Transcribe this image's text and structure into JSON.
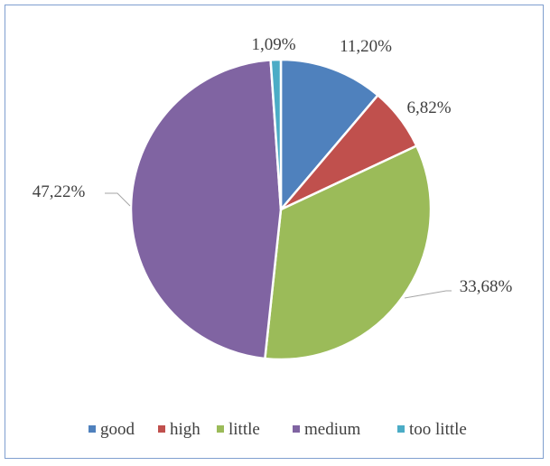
{
  "chart_data": {
    "type": "pie",
    "title": "",
    "start_angle_deg": 0,
    "direction": "clockwise",
    "legend_position": "bottom",
    "slices": [
      {
        "name": "good",
        "value": 11.2,
        "label": "11,20%",
        "color": "#4f81bd"
      },
      {
        "name": "high",
        "value": 6.82,
        "label": "6,82%",
        "color": "#c0504d"
      },
      {
        "name": "little",
        "value": 33.68,
        "label": "33,68%",
        "color": "#9bbb59"
      },
      {
        "name": "medium",
        "value": 47.22,
        "label": "47,22%",
        "color": "#8064a2"
      },
      {
        "name": "too little",
        "value": 1.09,
        "label": "1,09%",
        "color": "#4bacc6"
      }
    ]
  }
}
